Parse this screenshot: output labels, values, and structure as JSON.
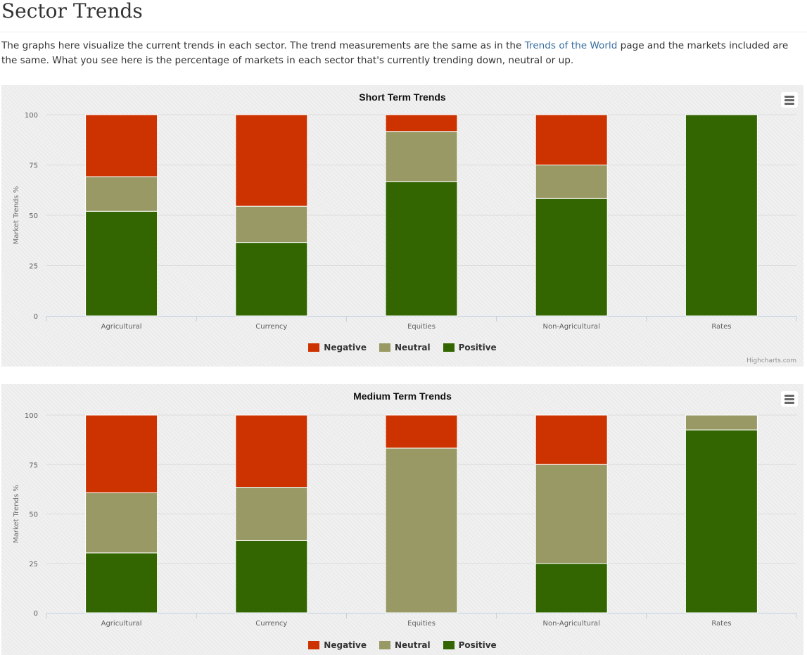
{
  "page": {
    "title": "Sector Trends",
    "intro_before": "The graphs here visualize the current trends in each sector. The trend measurements are the same as in the ",
    "intro_link": "Trends of the World",
    "intro_after": " page and the markets included are the same. What you see here is the percentage of markets in each sector that's currently trending down, neutral or up."
  },
  "colors": {
    "Negative": "#cc3300",
    "Neutral": "#999966",
    "Positive": "#336600"
  },
  "credits": "Highcharts.com",
  "chart_data": [
    {
      "type": "bar",
      "stacking": "normal",
      "title": "Short Term Trends",
      "ylabel": "Market Trends %",
      "ylim": [
        0,
        100
      ],
      "yticks": [
        0,
        25,
        50,
        75,
        100
      ],
      "categories": [
        "Agricultural",
        "Currency",
        "Equities",
        "Non-Agricultural",
        "Rates"
      ],
      "series": [
        {
          "name": "Negative",
          "values": [
            30.8,
            45.5,
            8.3,
            25.0,
            0
          ]
        },
        {
          "name": "Neutral",
          "values": [
            17.2,
            18.0,
            25.0,
            16.7,
            0
          ]
        },
        {
          "name": "Positive",
          "values": [
            52.0,
            36.5,
            66.7,
            58.3,
            100
          ]
        }
      ],
      "legend_position": "bottom-center"
    },
    {
      "type": "bar",
      "stacking": "normal",
      "title": "Medium Term Trends",
      "ylabel": "Market Trends %",
      "ylim": [
        0,
        100
      ],
      "yticks": [
        0,
        25,
        50,
        75,
        100
      ],
      "categories": [
        "Agricultural",
        "Currency",
        "Equities",
        "Non-Agricultural",
        "Rates"
      ],
      "series": [
        {
          "name": "Negative",
          "values": [
            39.3,
            36.5,
            16.7,
            25.0,
            0
          ]
        },
        {
          "name": "Neutral",
          "values": [
            30.4,
            27.0,
            83.3,
            50.0,
            7.5
          ]
        },
        {
          "name": "Positive",
          "values": [
            30.3,
            36.5,
            0,
            25.0,
            92.5
          ]
        }
      ],
      "legend_position": "bottom-center"
    }
  ]
}
